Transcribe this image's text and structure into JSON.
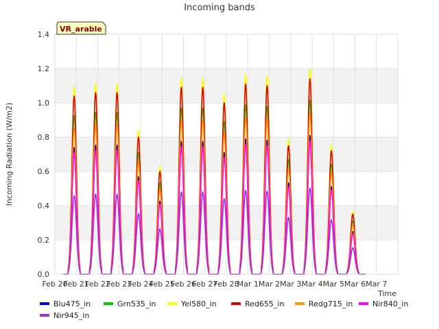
{
  "chart_data": {
    "type": "line",
    "title": "Incoming bands",
    "xlabel": "Time",
    "ylabel": "Incoming Radiation (W/m2)",
    "ylim": [
      0,
      1.4
    ],
    "yticks": [
      "0.0",
      "0.2",
      "0.4",
      "0.6",
      "0.8",
      "1.0",
      "1.2",
      "1.4"
    ],
    "xlim": [
      0,
      16
    ],
    "xticks": [
      "Feb 20",
      "Feb 21",
      "Feb 22",
      "Feb 23",
      "Feb 24",
      "Feb 25",
      "Feb 26",
      "Feb 27",
      "Feb 28",
      "Mar 1",
      "Mar 2",
      "Mar 3",
      "Mar 4",
      "Mar 5",
      "Mar 6",
      "Mar 7"
    ],
    "grid": true,
    "annotation": "VR_arable",
    "legend_position": "bottom",
    "day_peaks": [
      {
        "x": 0.9,
        "peak": 1.04
      },
      {
        "x": 1.9,
        "peak": 1.06
      },
      {
        "x": 2.9,
        "peak": 1.06
      },
      {
        "x": 3.9,
        "peak": 0.8
      },
      {
        "x": 4.9,
        "peak": 0.6
      },
      {
        "x": 5.9,
        "peak": 1.09
      },
      {
        "x": 6.9,
        "peak": 1.09
      },
      {
        "x": 7.9,
        "peak": 1.0
      },
      {
        "x": 8.9,
        "peak": 1.11
      },
      {
        "x": 9.9,
        "peak": 1.1
      },
      {
        "x": 10.9,
        "peak": 0.75
      },
      {
        "x": 11.9,
        "peak": 1.14
      },
      {
        "x": 12.9,
        "peak": 0.72
      },
      {
        "x": 13.9,
        "peak": 0.35
      }
    ],
    "series": [
      {
        "name": "Blu475_in",
        "color": "#0000cc",
        "scale": 0.71
      },
      {
        "name": "Grn535_in",
        "color": "#00cc00",
        "scale": 0.89
      },
      {
        "name": "Yel580_in",
        "color": "#ffff00",
        "scale": 1.05
      },
      {
        "name": "Red655_in",
        "color": "#dd0000",
        "scale": 1.0
      },
      {
        "name": "Redg715_in",
        "color": "#ff9900",
        "scale": 0.82
      },
      {
        "name": "Nir840_in",
        "color": "#ff00ff",
        "scale": 0.68
      },
      {
        "name": "Nir945_in",
        "color": "#9933cc",
        "scale": 0.44
      }
    ]
  }
}
